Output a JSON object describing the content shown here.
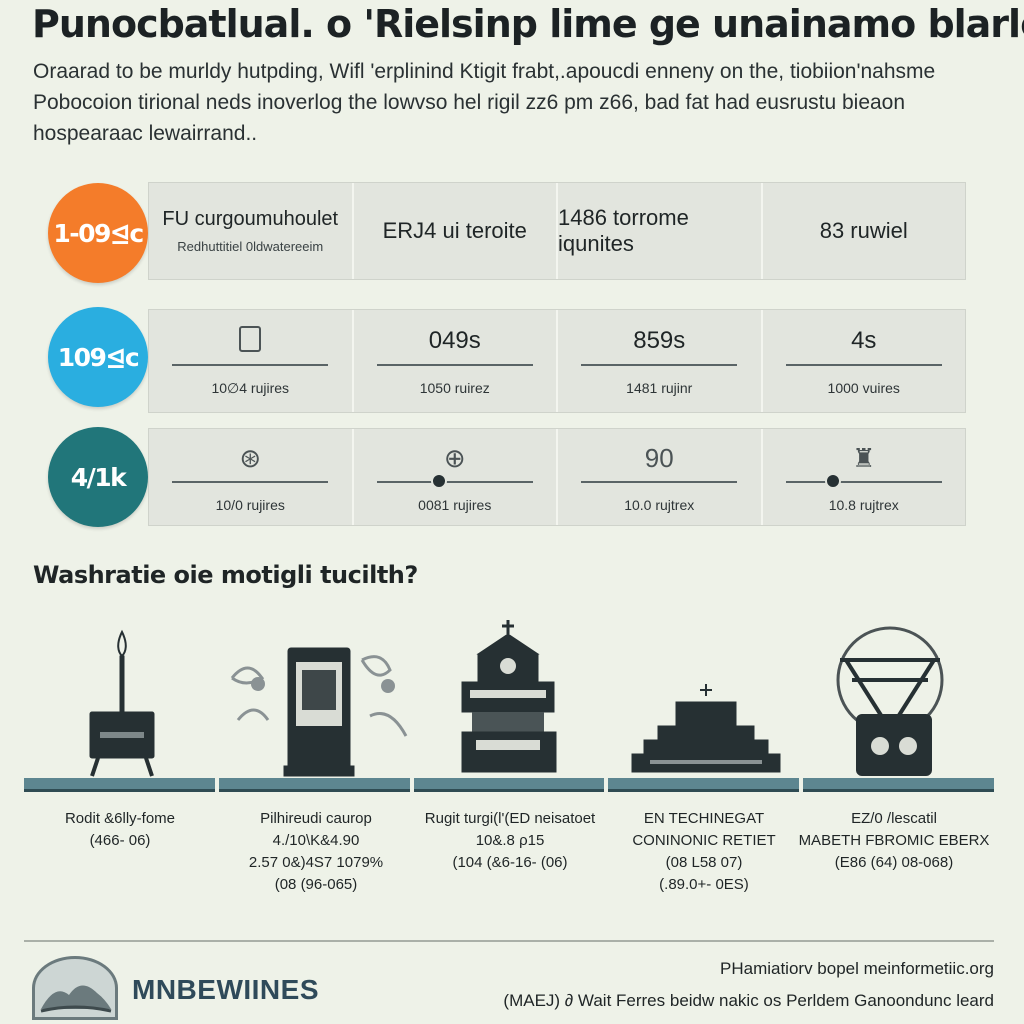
{
  "title": "Punocbatlual. o 'Rielsinp lime ge unainamo blarlet",
  "intro": [
    "Oraarad to be murldy hutpding, Wifl 'erplinind Ktigit frabt,.apoucdi enneny on the, tiobiion'nahsme",
    "Pobocoion tirional neds inoverlog the lowvso hel rigil zz6 pm z66, bad fat had eusrustu bieaon",
    "hospearaac lewairrand.."
  ],
  "stats": [
    {
      "badge": "1-09⊴c",
      "color": "#f47c2a",
      "cells": [
        {
          "main": "FU curgoumuhoulet",
          "sub": "Redhuttitiel 0ldwatereeim"
        },
        {
          "main": "ERJ4 ui teroite"
        },
        {
          "main": "1486 torrome iqunites"
        },
        {
          "main": "83 ruwiel"
        }
      ]
    },
    {
      "badge": "109⊴c",
      "color": "#2aaee0",
      "cells": [
        {
          "value": "",
          "icon": "document-icon",
          "caption": "10∅4 rujires"
        },
        {
          "value": "049s",
          "caption": "1050 ruirez"
        },
        {
          "value": "859s",
          "caption": "1481 rujinr"
        },
        {
          "value": "4s",
          "caption": "1000 vuires"
        }
      ]
    },
    {
      "badge": "4/1k",
      "color": "#21767a",
      "cells": [
        {
          "glyph": "⊛",
          "icon": "globe-icon",
          "caption": "10/0 rujires"
        },
        {
          "glyph": "⊕",
          "icon": "globe-icon",
          "caption": "0081 rujires",
          "slider": 0.4
        },
        {
          "glyph": "90",
          "caption": "10.0 rujtrex"
        },
        {
          "glyph": "♜",
          "icon": "building-icon",
          "caption": "10.8 rujtrex",
          "slider": 0.3
        }
      ]
    }
  ],
  "subtitle": "Washratie oie motigli tucilth?",
  "eras": [
    {
      "lines": [
        "Rodit &6lly-fome",
        "(466- 06)"
      ]
    },
    {
      "lines": [
        "Pilhireudi caurop",
        "4./10\\K&4.90",
        "2.57 0&)4S7 1079%",
        "(08 (96-065)"
      ]
    },
    {
      "lines": [
        "Rugit turgi(l'(ED neisatoet",
        "10&.8 ρ15",
        "(104 (&6-16- (06)"
      ]
    },
    {
      "lines": [
        "EN TECHINEGAT",
        "CONINONIC RETIET",
        "(08 L58 07)",
        "(.89.0+- 0ES)"
      ]
    },
    {
      "lines": [
        "EZ/0 /lescatil",
        "MABETH FBROMIC EBERX",
        "(E86 (64) 08-068)"
      ]
    }
  ],
  "footer": {
    "logo_text": "MNBEWIINES",
    "line1": "PHamiatiorv bopel meinformetiic.org",
    "line2": "(MAEJ) ∂ Wait Ferres beidw nakic os Perldem Ganoondunc leard"
  }
}
